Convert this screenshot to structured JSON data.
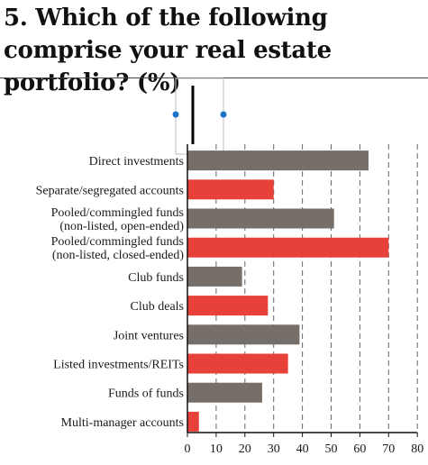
{
  "title": "5. Which of the following comprise your real estate portfolio? (%)",
  "colors": {
    "gray": "#766e68",
    "red": "#e8413a",
    "axis": "#111111",
    "grid": "#666666",
    "overlay": "#b8bec4",
    "handle": "#1a73c8"
  },
  "chart_data": {
    "type": "bar",
    "orientation": "horizontal",
    "title": "5. Which of the following comprise your real estate portfolio? (%)",
    "xlabel": "",
    "ylabel": "",
    "xlim": [
      0,
      80
    ],
    "xticks": [
      0,
      10,
      20,
      30,
      40,
      50,
      60,
      70,
      80
    ],
    "grid": "vertical dashed",
    "categories": [
      [
        "Direct investments"
      ],
      [
        "Separate/segregated accounts"
      ],
      [
        "Pooled/commingled funds",
        "(non-listed, open-ended)"
      ],
      [
        "Pooled/commingled funds",
        "(non-listed, closed-ended)"
      ],
      [
        "Club funds"
      ],
      [
        "Club deals"
      ],
      [
        "Joint ventures"
      ],
      [
        "Listed investments/REITs"
      ],
      [
        "Funds of funds"
      ],
      [
        "Multi-manager accounts"
      ]
    ],
    "values": [
      63,
      30,
      51,
      70,
      19,
      28,
      39,
      35,
      26,
      4
    ],
    "bar_colors": [
      "gray",
      "red",
      "gray",
      "red",
      "gray",
      "red",
      "gray",
      "red",
      "gray",
      "red"
    ]
  }
}
